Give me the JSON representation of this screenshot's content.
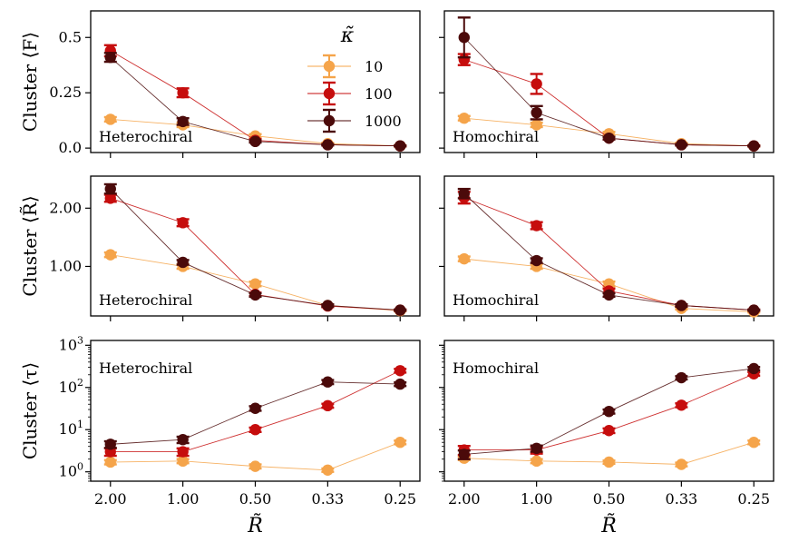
{
  "chart_data": {
    "type": "scatter",
    "x_categories": [
      "2.00",
      "1.00",
      "0.50",
      "0.33",
      "0.25"
    ],
    "xlabel": "R̃",
    "legend": {
      "title": "κ̃",
      "position": "top-right of top-left panel",
      "entries": [
        "10",
        "100",
        "1000"
      ],
      "colors": [
        "#f5a44a",
        "#c60d0d",
        "#4b0a0a"
      ]
    },
    "rows": [
      {
        "ylabel": "Cluster ⟨F⟩",
        "scale": "linear",
        "ylim": [
          -0.02,
          0.62
        ],
        "yticks": [
          0,
          0.25,
          0.5
        ],
        "yticklabels": [
          "0.0",
          "0.25",
          "0.5"
        ],
        "panels": [
          {
            "annotation": "Heterochiral",
            "series": [
              {
                "name": "10",
                "values": [
                  0.13,
                  0.105,
                  0.055,
                  0.02,
                  0.01
                ],
                "err": [
                  0.01,
                  0.01,
                  0.008,
                  0.004,
                  0.003
                ]
              },
              {
                "name": "100",
                "values": [
                  0.44,
                  0.25,
                  0.035,
                  0.015,
                  0.01
                ],
                "err": [
                  0.025,
                  0.02,
                  0.006,
                  0.003,
                  0.002
                ]
              },
              {
                "name": "1000",
                "values": [
                  0.41,
                  0.12,
                  0.03,
                  0.015,
                  0.01
                ],
                "err": [
                  0.02,
                  0.015,
                  0.005,
                  0.003,
                  0.002
                ]
              }
            ]
          },
          {
            "annotation": "Homochiral",
            "series": [
              {
                "name": "10",
                "values": [
                  0.135,
                  0.105,
                  0.065,
                  0.02,
                  0.01
                ],
                "err": [
                  0.01,
                  0.01,
                  0.008,
                  0.004,
                  0.003
                ]
              },
              {
                "name": "100",
                "values": [
                  0.4,
                  0.29,
                  0.045,
                  0.015,
                  0.01
                ],
                "err": [
                  0.025,
                  0.045,
                  0.006,
                  0.003,
                  0.002
                ]
              },
              {
                "name": "1000",
                "values": [
                  0.5,
                  0.16,
                  0.045,
                  0.015,
                  0.01
                ],
                "err": [
                  0.09,
                  0.03,
                  0.006,
                  0.003,
                  0.002
                ]
              }
            ]
          }
        ]
      },
      {
        "ylabel": "Cluster ⟨R̃⟩",
        "scale": "linear",
        "ylim": [
          0.15,
          2.55
        ],
        "yticks": [
          1,
          2
        ],
        "yticklabels": [
          "1.00",
          "2.00"
        ],
        "panels": [
          {
            "annotation": "Heterochiral",
            "series": [
              {
                "name": "10",
                "values": [
                  1.2,
                  1.0,
                  0.7,
                  0.33,
                  0.24
                ],
                "err": [
                  0.04,
                  0.04,
                  0.04,
                  0.02,
                  0.01
                ]
              },
              {
                "name": "100",
                "values": [
                  2.17,
                  1.75,
                  0.52,
                  0.32,
                  0.25
                ],
                "err": [
                  0.06,
                  0.06,
                  0.03,
                  0.02,
                  0.01
                ]
              },
              {
                "name": "1000",
                "values": [
                  2.33,
                  1.07,
                  0.51,
                  0.33,
                  0.25
                ],
                "err": [
                  0.08,
                  0.04,
                  0.03,
                  0.02,
                  0.01
                ]
              }
            ]
          },
          {
            "annotation": "Homochiral",
            "series": [
              {
                "name": "10",
                "values": [
                  1.13,
                  1.0,
                  0.7,
                  0.28,
                  0.22
                ],
                "err": [
                  0.04,
                  0.04,
                  0.04,
                  0.02,
                  0.01
                ]
              },
              {
                "name": "100",
                "values": [
                  2.18,
                  1.7,
                  0.58,
                  0.33,
                  0.25
                ],
                "err": [
                  0.1,
                  0.06,
                  0.04,
                  0.02,
                  0.01
                ]
              },
              {
                "name": "1000",
                "values": [
                  2.25,
                  1.1,
                  0.51,
                  0.33,
                  0.25
                ],
                "err": [
                  0.08,
                  0.04,
                  0.03,
                  0.02,
                  0.01
                ]
              }
            ]
          }
        ]
      },
      {
        "ylabel": "Cluster ⟨τ⟩",
        "scale": "log",
        "ylim": [
          0.6,
          1300
        ],
        "yticks": [
          1,
          10,
          100,
          1000
        ],
        "yticklabels": [
          "10",
          "10",
          "10",
          "10"
        ],
        "yticksup": [
          "0",
          "1",
          "2",
          "3"
        ],
        "panels": [
          {
            "annotation": "Heterochiral",
            "series": [
              {
                "name": "10",
                "values": [
                  1.7,
                  1.8,
                  1.35,
                  1.1,
                  5.0
                ],
                "err": [
                  0.2,
                  0.2,
                  0.15,
                  0.1,
                  0.5
                ]
              },
              {
                "name": "100",
                "values": [
                  3.0,
                  3.0,
                  10.0,
                  37.0,
                  250.0
                ],
                "err": [
                  0.6,
                  0.6,
                  1.2,
                  4.0,
                  25.0
                ]
              },
              {
                "name": "1000",
                "values": [
                  4.5,
                  5.8,
                  32.0,
                  135.0,
                  120.0
                ],
                "err": [
                  0.8,
                  1.0,
                  4.0,
                  15.0,
                  12.0
                ]
              }
            ]
          },
          {
            "annotation": "Homochiral",
            "series": [
              {
                "name": "10",
                "values": [
                  2.1,
                  1.8,
                  1.7,
                  1.5,
                  5.0
                ],
                "err": [
                  0.2,
                  0.2,
                  0.15,
                  0.15,
                  0.5
                ]
              },
              {
                "name": "100",
                "values": [
                  3.3,
                  3.3,
                  9.5,
                  38.0,
                  210.0
                ],
                "err": [
                  0.8,
                  0.6,
                  1.2,
                  4.0,
                  20.0
                ]
              },
              {
                "name": "1000",
                "values": [
                  2.6,
                  3.6,
                  27.0,
                  170.0,
                  280.0
                ],
                "err": [
                  0.6,
                  0.6,
                  3.0,
                  15.0,
                  25.0
                ]
              }
            ]
          }
        ]
      }
    ]
  }
}
